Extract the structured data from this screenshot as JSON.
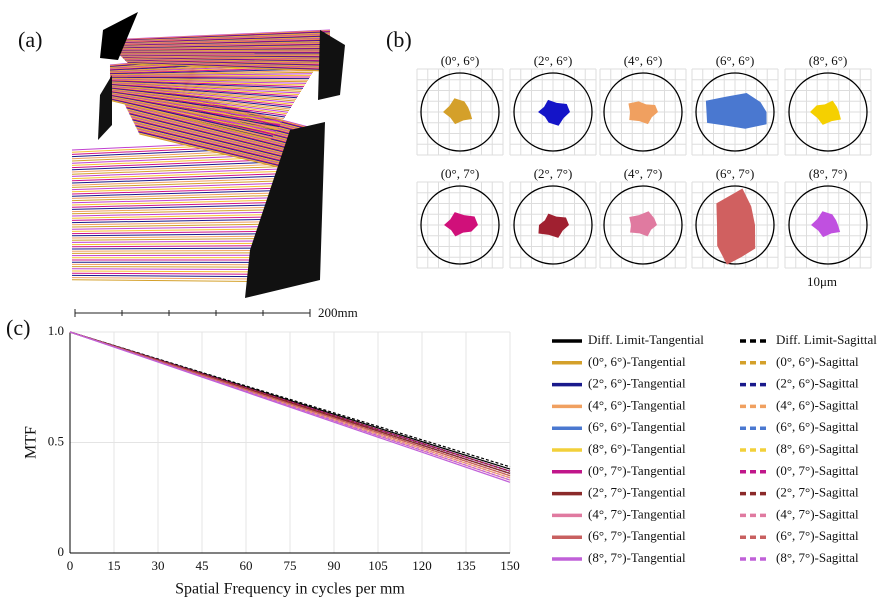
{
  "figure": {
    "panel_a": {
      "label": "(a)",
      "scale_label": "200mm"
    },
    "panel_b": {
      "label": "(b)",
      "scale_label": "10μm",
      "spots": [
        {
          "label": "(0°, 6°)",
          "color": "#d4a02a"
        },
        {
          "label": "(2°, 6°)",
          "color": "#1414c8"
        },
        {
          "label": "(4°, 6°)",
          "color": "#f0a060"
        },
        {
          "label": "(6°, 6°)",
          "color": "#4a78d0"
        },
        {
          "label": "(8°, 6°)",
          "color": "#f5d000"
        },
        {
          "label": "(0°, 7°)",
          "color": "#d0107a"
        },
        {
          "label": "(2°, 7°)",
          "color": "#a02030"
        },
        {
          "label": "(4°, 7°)",
          "color": "#e07aa0"
        },
        {
          "label": "(6°, 7°)",
          "color": "#d06060"
        },
        {
          "label": "(8°, 7°)",
          "color": "#c050e0"
        }
      ]
    },
    "panel_c": {
      "label": "(c)"
    }
  },
  "chart_data": {
    "type": "line",
    "x_label": "Spatial Frequency in cycles per mm",
    "y_label": "MTF",
    "x": [
      0,
      30,
      60,
      90,
      120,
      150
    ],
    "xlim": [
      0,
      150
    ],
    "xticks": [
      0,
      15,
      30,
      45,
      60,
      75,
      90,
      105,
      120,
      135,
      150
    ],
    "ylim": [
      0,
      1
    ],
    "yticks": [
      0,
      0.5,
      {
        "value": 1,
        "label": "1.0"
      }
    ],
    "grid": true,
    "series": [
      {
        "name": "Diff. Limit-Tangential",
        "color": "#000000",
        "style": "solid",
        "values": [
          1,
          0.876,
          0.752,
          0.628,
          0.504,
          0.38
        ]
      },
      {
        "name": "Diff. Limit-Sagittal",
        "color": "#000000",
        "style": "dashed",
        "values": [
          1,
          0.878,
          0.756,
          0.634,
          0.512,
          0.39
        ]
      },
      {
        "name": "(0°, 6°)-Tangential",
        "color": "#d4a02a",
        "style": "solid",
        "values": [
          1,
          0.872,
          0.744,
          0.616,
          0.488,
          0.36
        ]
      },
      {
        "name": "(0°, 6°)-Sagittal",
        "color": "#d4a02a",
        "style": "dashed",
        "values": [
          1,
          0.874,
          0.748,
          0.622,
          0.496,
          0.37
        ]
      },
      {
        "name": "(2°, 6°)-Tangential",
        "color": "#1a1a8c",
        "style": "solid",
        "values": [
          1,
          0.874,
          0.748,
          0.622,
          0.496,
          0.37
        ]
      },
      {
        "name": "(2°, 6°)-Sagittal",
        "color": "#1a1a8c",
        "style": "dashed",
        "values": [
          1,
          0.872,
          0.744,
          0.616,
          0.488,
          0.36
        ]
      },
      {
        "name": "(4°, 6°)-Tangential",
        "color": "#f0a060",
        "style": "solid",
        "values": [
          1,
          0.868,
          0.736,
          0.604,
          0.472,
          0.34
        ]
      },
      {
        "name": "(4°, 6°)-Sagittal",
        "color": "#f0a060",
        "style": "dashed",
        "values": [
          1,
          0.87,
          0.74,
          0.61,
          0.48,
          0.35
        ]
      },
      {
        "name": "(6°, 6°)-Tangential",
        "color": "#4a78d0",
        "style": "solid",
        "values": [
          1,
          0.872,
          0.744,
          0.616,
          0.488,
          0.36
        ]
      },
      {
        "name": "(6°, 6°)-Sagittal",
        "color": "#4a78d0",
        "style": "dashed",
        "values": [
          1,
          0.872,
          0.744,
          0.616,
          0.488,
          0.36
        ]
      },
      {
        "name": "(8°, 6°)-Tangential",
        "color": "#f2d03a",
        "style": "solid",
        "values": [
          1,
          0.87,
          0.74,
          0.61,
          0.48,
          0.35
        ]
      },
      {
        "name": "(8°, 6°)-Sagittal",
        "color": "#f2d03a",
        "style": "dashed",
        "values": [
          1,
          0.868,
          0.736,
          0.604,
          0.472,
          0.34
        ]
      },
      {
        "name": "(0°, 7°)-Tangential",
        "color": "#c0168a",
        "style": "solid",
        "values": [
          1,
          0.874,
          0.748,
          0.622,
          0.496,
          0.37
        ]
      },
      {
        "name": "(0°, 7°)-Sagittal",
        "color": "#c0168a",
        "style": "dashed",
        "values": [
          1,
          0.872,
          0.744,
          0.616,
          0.488,
          0.36
        ]
      },
      {
        "name": "(2°, 7°)-Tangential",
        "color": "#8b2a2a",
        "style": "solid",
        "values": [
          1,
          0.872,
          0.744,
          0.616,
          0.488,
          0.36
        ]
      },
      {
        "name": "(2°, 7°)-Sagittal",
        "color": "#8b2a2a",
        "style": "dashed",
        "values": [
          1,
          0.874,
          0.748,
          0.622,
          0.496,
          0.37
        ]
      },
      {
        "name": "(4°, 7°)-Tangential",
        "color": "#e07aa0",
        "style": "solid",
        "values": [
          1,
          0.866,
          0.732,
          0.598,
          0.464,
          0.33
        ]
      },
      {
        "name": "(4°, 7°)-Sagittal",
        "color": "#e07aa0",
        "style": "dashed",
        "values": [
          1,
          0.868,
          0.736,
          0.604,
          0.472,
          0.34
        ]
      },
      {
        "name": "(6°, 7°)-Tangential",
        "color": "#c86060",
        "style": "solid",
        "values": [
          1,
          0.87,
          0.74,
          0.61,
          0.48,
          0.35
        ]
      },
      {
        "name": "(6°, 7°)-Sagittal",
        "color": "#c86060",
        "style": "dashed",
        "values": [
          1,
          0.87,
          0.74,
          0.61,
          0.48,
          0.35
        ]
      },
      {
        "name": "(8°, 7°)-Tangential",
        "color": "#c060d8",
        "style": "solid",
        "values": [
          1,
          0.864,
          0.728,
          0.592,
          0.456,
          0.32
        ]
      },
      {
        "name": "(8°, 7°)-Sagittal",
        "color": "#c060d8",
        "style": "dashed",
        "values": [
          1,
          0.866,
          0.732,
          0.598,
          0.464,
          0.33
        ]
      }
    ]
  }
}
